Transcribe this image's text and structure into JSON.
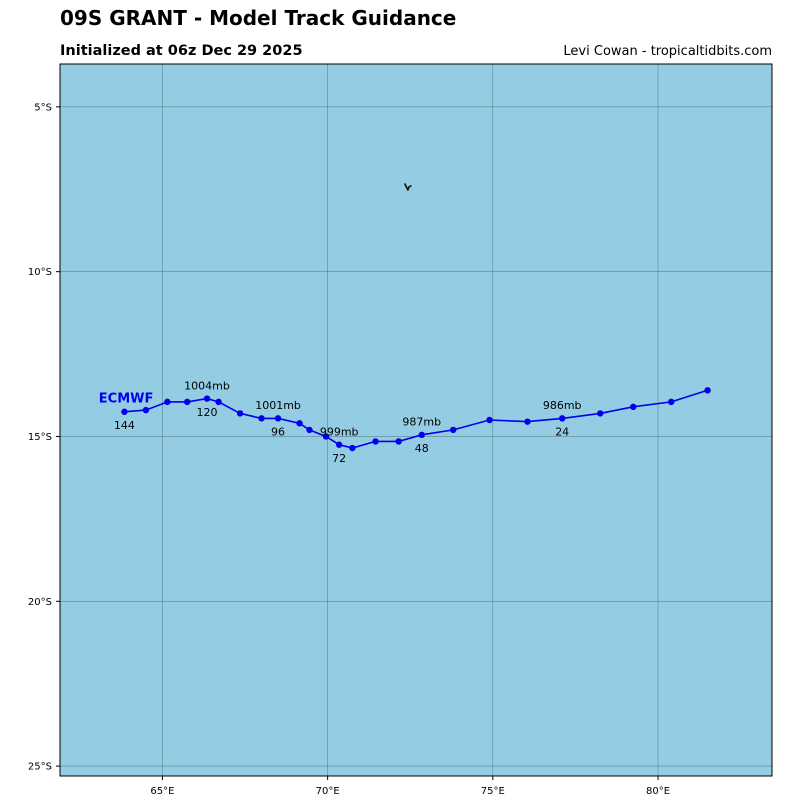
{
  "header": {
    "title": "09S GRANT - Model Track Guidance",
    "subtitle": "Initialized at 06z Dec 29 2025",
    "credit": "Levi Cowan - tropicaltidbits.com"
  },
  "colors": {
    "ocean": "#94cde3",
    "grid": "#4d6f7d",
    "track": "#0000ee"
  },
  "map": {
    "lon_range": [
      61.9,
      83.45
    ],
    "lat_range": [
      -25.3,
      -3.7
    ],
    "lon_ticks": [
      {
        "value": 65,
        "label": "65°E"
      },
      {
        "value": 70,
        "label": "70°E"
      },
      {
        "value": 75,
        "label": "75°E"
      },
      {
        "value": 80,
        "label": "80°E"
      }
    ],
    "lat_ticks": [
      {
        "value": -5,
        "label": "5°S"
      },
      {
        "value": -10,
        "label": "10°S"
      },
      {
        "value": -15,
        "label": "15°S"
      },
      {
        "value": -20,
        "label": "20°S"
      },
      {
        "value": -25,
        "label": "25°S"
      }
    ],
    "island_marker": {
      "lon": 72.4,
      "lat": -7.4,
      "icon": "island-coastline-icon"
    }
  },
  "tracks": [
    {
      "model": "ECMWF",
      "points": [
        {
          "lon": 81.5,
          "lat": -13.6
        },
        {
          "lon": 80.4,
          "lat": -13.95
        },
        {
          "lon": 79.25,
          "lat": -14.1
        },
        {
          "lon": 78.25,
          "lat": -14.3
        },
        {
          "lon": 77.1,
          "lat": -14.45
        },
        {
          "lon": 76.05,
          "lat": -14.55
        },
        {
          "lon": 74.9,
          "lat": -14.5
        },
        {
          "lon": 73.8,
          "lat": -14.8
        },
        {
          "lon": 72.85,
          "lat": -14.95
        },
        {
          "lon": 72.15,
          "lat": -15.15
        },
        {
          "lon": 71.45,
          "lat": -15.15
        },
        {
          "lon": 70.75,
          "lat": -15.35
        },
        {
          "lon": 70.35,
          "lat": -15.25
        },
        {
          "lon": 69.95,
          "lat": -15.0
        },
        {
          "lon": 69.45,
          "lat": -14.8
        },
        {
          "lon": 69.15,
          "lat": -14.6
        },
        {
          "lon": 68.5,
          "lat": -14.45
        },
        {
          "lon": 68.0,
          "lat": -14.45
        },
        {
          "lon": 67.35,
          "lat": -14.3
        },
        {
          "lon": 66.7,
          "lat": -13.95
        },
        {
          "lon": 66.35,
          "lat": -13.85
        },
        {
          "lon": 65.75,
          "lat": -13.95
        },
        {
          "lon": 65.15,
          "lat": -13.95
        },
        {
          "lon": 64.5,
          "lat": -14.2
        },
        {
          "lon": 63.85,
          "lat": -14.25
        }
      ],
      "labels": [
        {
          "text": "986mb",
          "lon": 77.1,
          "lat": -14.05
        },
        {
          "text": "24",
          "lon": 77.1,
          "lat": -14.85
        },
        {
          "text": "987mb",
          "lon": 72.85,
          "lat": -14.55
        },
        {
          "text": "48",
          "lon": 72.85,
          "lat": -15.35
        },
        {
          "text": "999mb",
          "lon": 70.35,
          "lat": -14.85
        },
        {
          "text": "72",
          "lon": 70.35,
          "lat": -15.65
        },
        {
          "text": "1001mb",
          "lon": 68.5,
          "lat": -14.05
        },
        {
          "text": "96",
          "lon": 68.5,
          "lat": -14.85
        },
        {
          "text": "1004mb",
          "lon": 66.35,
          "lat": -13.45
        },
        {
          "text": "120",
          "lon": 66.35,
          "lat": -14.25
        },
        {
          "text": "144",
          "lon": 63.85,
          "lat": -14.65
        }
      ],
      "model_label_position": {
        "lon": 63.9,
        "lat": -13.85
      }
    }
  ]
}
